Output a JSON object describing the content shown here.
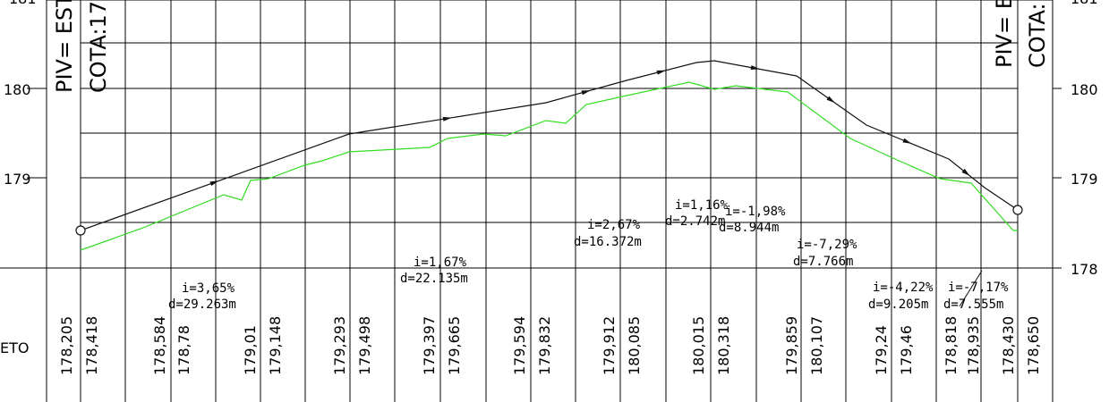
{
  "chart_data": {
    "type": "line",
    "y_axis": {
      "range": [
        178,
        181
      ],
      "ticks_left": [
        "181",
        "180",
        "179"
      ],
      "ticks_right": [
        "181",
        "180",
        "179",
        "178"
      ]
    },
    "grade_line": {
      "pivs": [
        {
          "piv": "PIV= EST",
          "cota": "COTA:17"
        },
        {
          "piv": "PIV= E",
          "cota": "COTA:"
        }
      ],
      "points": [
        [
          90,
          178.42
        ],
        [
          390,
          179.5
        ],
        [
          610,
          179.85
        ],
        [
          700,
          180.1
        ],
        [
          778,
          180.3
        ],
        [
          798,
          180.32
        ],
        [
          890,
          180.15
        ],
        [
          968,
          179.6
        ],
        [
          1060,
          179.22
        ],
        [
          1100,
          178.9
        ],
        [
          1137,
          178.65
        ]
      ]
    },
    "terrain_line": {
      "color": "#33dd22",
      "points": [
        [
          90,
          178.2
        ],
        [
          160,
          178.45
        ],
        [
          250,
          178.82
        ],
        [
          270,
          178.76
        ],
        [
          280,
          178.98
        ],
        [
          300,
          179.0
        ],
        [
          340,
          179.15
        ],
        [
          360,
          179.2
        ],
        [
          390,
          179.3
        ],
        [
          480,
          179.35
        ],
        [
          500,
          179.45
        ],
        [
          540,
          179.5
        ],
        [
          565,
          179.48
        ],
        [
          610,
          179.65
        ],
        [
          632,
          179.62
        ],
        [
          655,
          179.83
        ],
        [
          700,
          179.93
        ],
        [
          770,
          180.08
        ],
        [
          798,
          180.0
        ],
        [
          822,
          180.04
        ],
        [
          880,
          179.97
        ],
        [
          950,
          179.45
        ],
        [
          1000,
          179.22
        ],
        [
          1050,
          179.0
        ],
        [
          1085,
          178.95
        ],
        [
          1132,
          178.42
        ],
        [
          1137,
          178.42
        ]
      ]
    },
    "grade_annotations": [
      {
        "i": "i=3,65%",
        "d": "d=29.263m"
      },
      {
        "i": "i=1,67%",
        "d": "d=22.135m"
      },
      {
        "i": "i=2,67%",
        "d": "d=16.372m"
      },
      {
        "i": "i=1,16%",
        "d": "d=2.742m"
      },
      {
        "i": "i=-1,98%",
        "d": "d=8.944m"
      },
      {
        "i": "i=-7,29%",
        "d": "d=7.766m"
      },
      {
        "i": "i=-4,22%",
        "d": "d=9.205m"
      },
      {
        "i": "i=-7,17%",
        "d": "d=7.555m"
      }
    ],
    "row_label": "ETO",
    "bottom_values": [
      "178,205",
      "178,418",
      "178,584",
      "178,78",
      "179,01",
      "179,148",
      "179,293",
      "179,498",
      "179,397",
      "179,665",
      "179,594",
      "179,832",
      "179,912",
      "180,085",
      "180,015",
      "180,318",
      "179,859",
      "180,107",
      "179,24",
      "179,46",
      "178,818",
      "178,935",
      "178,430",
      "178,650"
    ]
  }
}
